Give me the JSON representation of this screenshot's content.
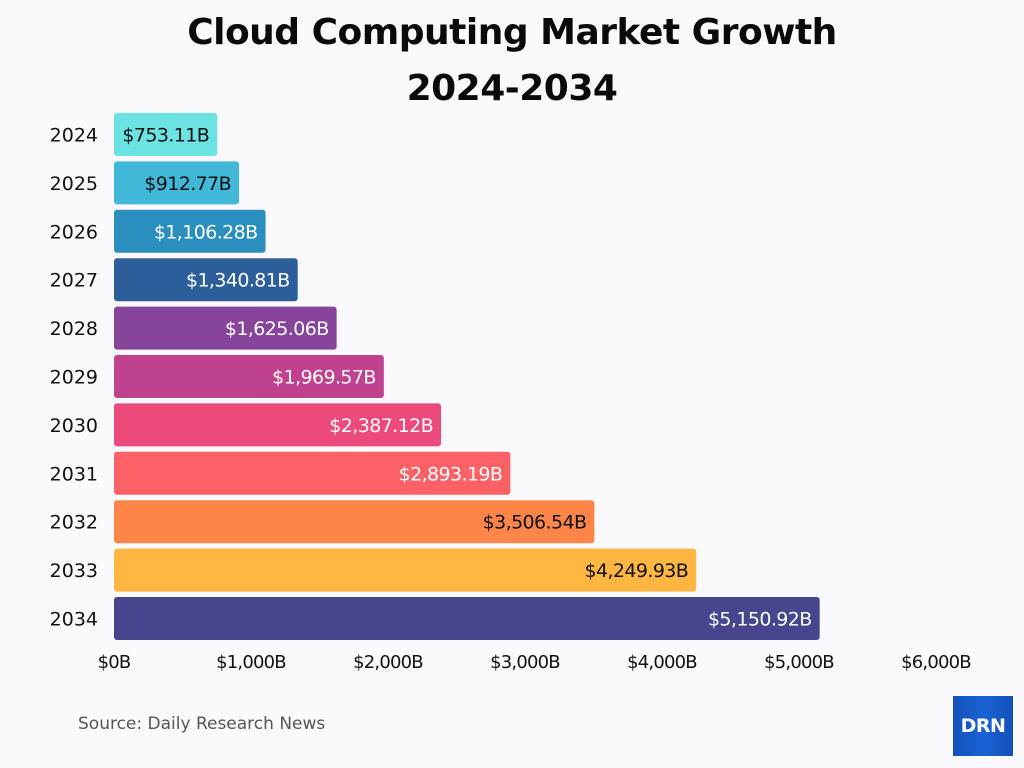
{
  "chart_data": {
    "type": "bar",
    "orientation": "horizontal",
    "title": "Cloud Computing Market Growth",
    "subtitle": "2024-2034",
    "categories": [
      "2024",
      "2025",
      "2026",
      "2027",
      "2028",
      "2029",
      "2030",
      "2031",
      "2032",
      "2033",
      "2034"
    ],
    "values": [
      753.11,
      912.77,
      1106.28,
      1340.81,
      1625.06,
      1969.57,
      2387.12,
      2893.19,
      3506.54,
      4249.93,
      5150.92
    ],
    "data_labels": [
      "$753.11B",
      "$912.77B",
      "$1,106.28B",
      "$1,340.81B",
      "$1,625.06B",
      "$1,969.57B",
      "$2,387.12B",
      "$2,893.19B",
      "$3,506.54B",
      "$4,249.93B",
      "$5,150.92B"
    ],
    "colors": [
      "#6be3e3",
      "#42b8d8",
      "#2a8fbf",
      "#2c5f9a",
      "#86449a",
      "#c0428f",
      "#ec4a7a",
      "#fb6165",
      "#ff8549",
      "#ffb742",
      "#46458e"
    ],
    "label_colors": [
      "#111111",
      "#111111",
      "#ffffff",
      "#ffffff",
      "#ffffff",
      "#ffffff",
      "#ffffff",
      "#ffffff",
      "#111111",
      "#111111",
      "#ffffff"
    ],
    "xlim": [
      0,
      6000
    ],
    "x_ticks": [
      0,
      1000,
      2000,
      3000,
      4000,
      5000,
      6000
    ],
    "x_tick_labels": [
      "$0B",
      "$1,000B",
      "$2,000B",
      "$3,000B",
      "$4,000B",
      "$5,000B",
      "$6,000B"
    ],
    "xlabel": "",
    "ylabel": "",
    "grid": false,
    "legend": "none"
  },
  "footer": {
    "source": "Source: Daily Research News",
    "logo_text": "DRN"
  }
}
